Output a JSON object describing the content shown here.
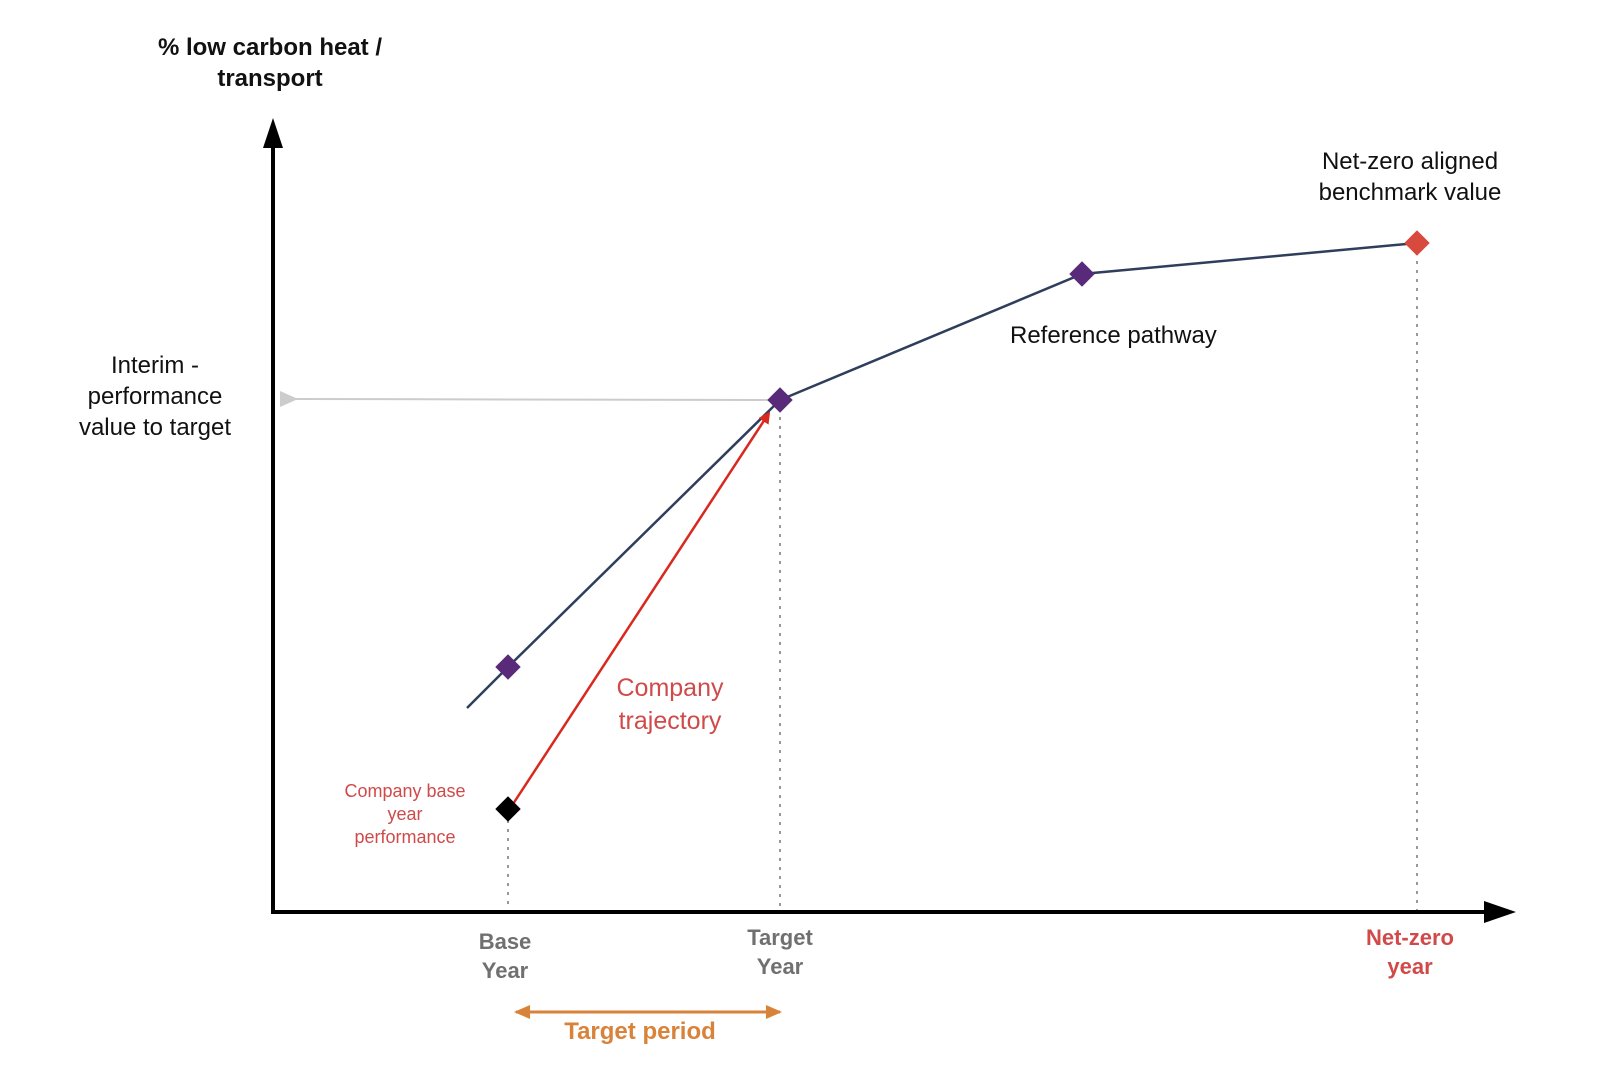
{
  "diagram": {
    "y_axis_title": "% low carbon heat /\ntransport",
    "interim_label": "Interim -\nperformance\nvalue to target",
    "net_zero_benchmark_label": "Net-zero aligned\nbenchmark value",
    "reference_pathway_label": "Reference pathway",
    "company_trajectory_label": "Company\ntrajectory",
    "company_base_label": "Company base\nyear\nperformance",
    "x_ticks": {
      "base_year": "Base\nYear",
      "target_year": "Target\nYear",
      "net_zero_year": "Net-zero\nyear"
    },
    "target_period_label": "Target period"
  },
  "colors": {
    "axis": "#000000",
    "reference_pathway": "#2f3e5c",
    "pathway_marker": "#5a2a7a",
    "company_trajectory": "#d9281e",
    "net_zero_marker": "#d94a3e",
    "target_period": "#d8823a",
    "guide_arrow": "#cccccc",
    "dotted_guides": "#999999"
  },
  "icons": {
    "markers": "diamond",
    "arrows": "arrowhead"
  }
}
